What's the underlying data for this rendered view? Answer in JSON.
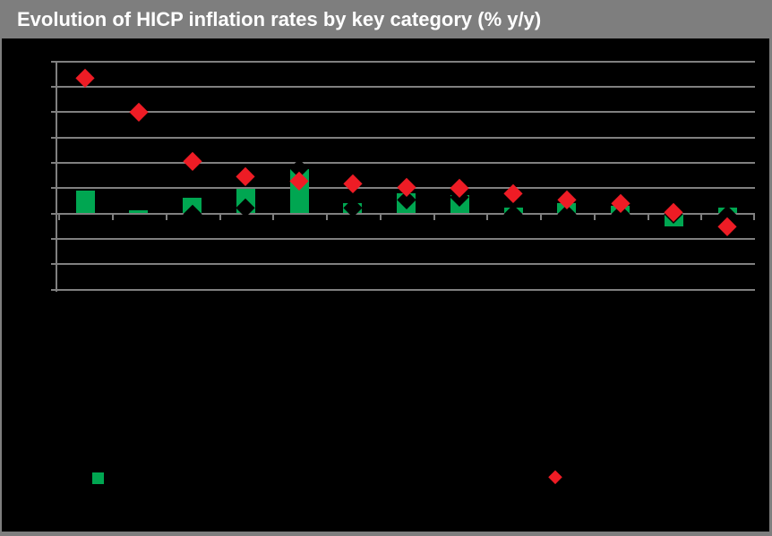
{
  "window": {
    "title": "Evolution of HICP inflation rates by key category (% y/y)",
    "titlebar_color": "#7E7E7E",
    "title_text_color": "#FFFFFF",
    "background_color": "#000000",
    "frame_color": "#7E7E7E"
  },
  "chart_data": {
    "type": "bar",
    "title": "Evolution of HICP inflation rates by key category (% y/y)",
    "num_categories": 13,
    "category_tick_labels": [
      "",
      "",
      "",
      "",
      "",
      "",
      "",
      "",
      "",
      "",
      "",
      "",
      ""
    ],
    "axis_tick_labels_visible": false,
    "ylim": [
      -1.5,
      3.0
    ],
    "gridline_step": 0.5,
    "grid": true,
    "gridline_color": "#808080",
    "plot_background": "#000000",
    "series": [
      {
        "name": "green-bars",
        "type": "bar",
        "marker": "square",
        "color": "#00A651",
        "values": [
          0.46,
          0.07,
          0.31,
          0.49,
          0.88,
          0.21,
          0.4,
          0.37,
          0.12,
          0.2,
          0.16,
          -0.26,
          0.12
        ]
      },
      {
        "name": "dark-diamonds",
        "type": "scatter",
        "marker": "diamond",
        "color": "#000000",
        "values": [
          null,
          null,
          0.0,
          0.12,
          0.89,
          0.12,
          0.28,
          0.33,
          0.0,
          0.0,
          0.0,
          0.0,
          -0.03
        ]
      },
      {
        "name": "red-diamonds",
        "type": "scatter",
        "marker": "diamond",
        "color": "#EE1C25",
        "values": [
          2.67,
          2.0,
          1.03,
          0.74,
          0.64,
          0.6,
          0.52,
          0.5,
          0.4,
          0.27,
          0.21,
          0.03,
          -0.25
        ]
      }
    ],
    "legend": {
      "position": "bottom",
      "entries": [
        {
          "marker": "square",
          "color": "#00A651",
          "label": ""
        },
        {
          "marker": "diamond",
          "color": "#EE1C25",
          "label": ""
        }
      ]
    }
  }
}
